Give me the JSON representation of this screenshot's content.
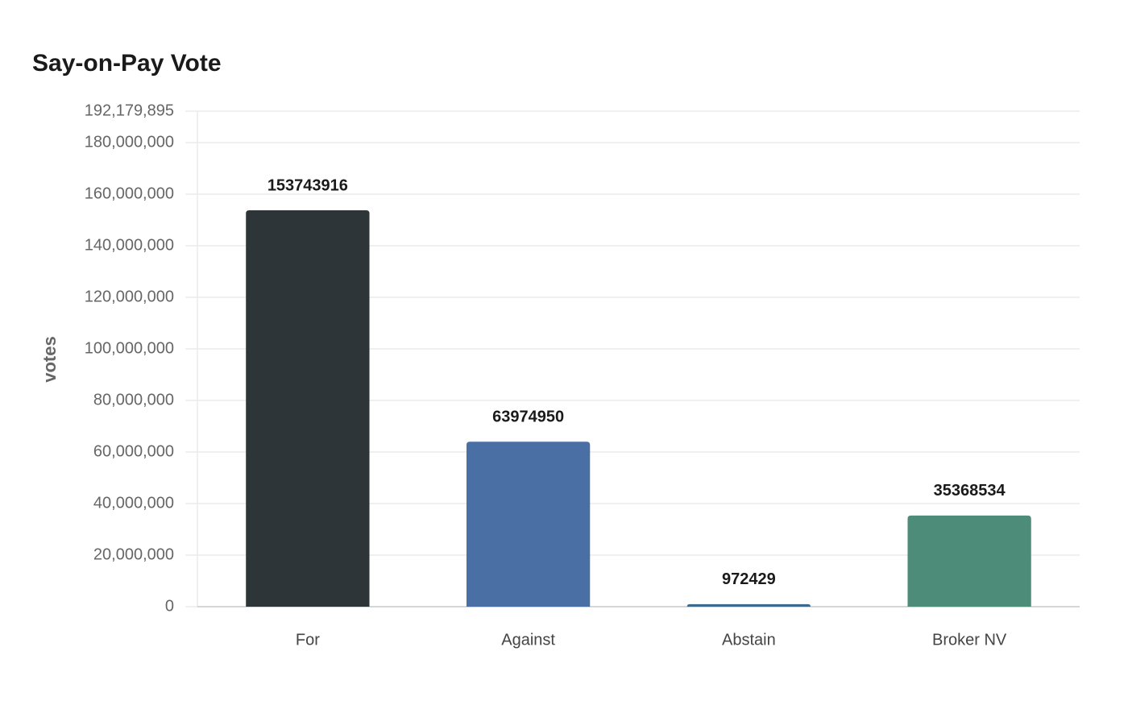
{
  "chart_data": {
    "type": "bar",
    "title": "Say-on-Pay Vote",
    "y_label": "votes",
    "categories": [
      "For",
      "Against",
      "Abstain",
      "Broker NV"
    ],
    "values": [
      153743916,
      63974950,
      972429,
      35368534
    ],
    "colors": [
      "#2e3538",
      "#4a6fa5",
      "#3d6a8c",
      "#4e8c7a"
    ],
    "ylim": [
      0,
      192179895
    ],
    "yticks": [
      0,
      {
        "value": 20000000,
        "label": "20,000,000"
      },
      {
        "value": 40000000,
        "label": "40,000,000"
      },
      {
        "value": 60000000,
        "label": "60,000,000"
      },
      {
        "value": 80000000,
        "label": "80,000,000"
      },
      {
        "value": 100000000,
        "label": "100,000,000"
      },
      {
        "value": 120000000,
        "label": "120,000,000"
      },
      {
        "value": 140000000,
        "label": "140,000,000"
      },
      {
        "value": 160000000,
        "label": "160,000,000"
      },
      {
        "value": 180000000,
        "label": "180,000,000"
      },
      {
        "value": 192179895,
        "label": "192,179,895"
      }
    ],
    "grid": true
  }
}
